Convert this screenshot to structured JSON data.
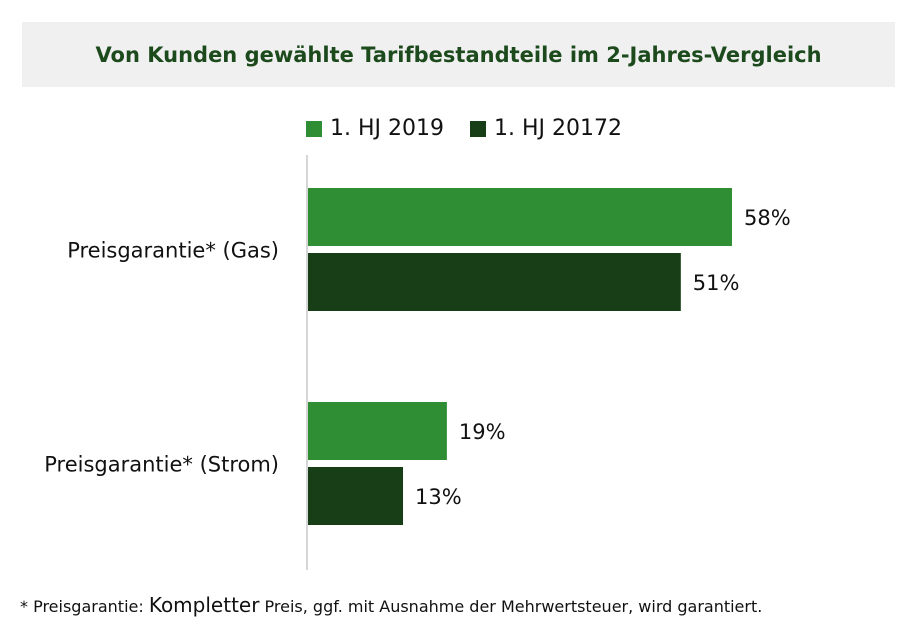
{
  "chart_data": {
    "type": "bar",
    "orientation": "horizontal",
    "title": "Von Kunden gewählte Tarifbestandteile im 2-Jahres-Vergleich",
    "categories": [
      "Preisgarantie* (Gas)",
      "Preisgarantie* (Strom)"
    ],
    "series": [
      {
        "name": "1. HJ 2019",
        "values": [
          58,
          19
        ],
        "color": "#2f8e33"
      },
      {
        "name": "1. HJ 20172",
        "values": [
          51,
          13
        ],
        "color": "#173e17"
      }
    ],
    "value_suffix": "%",
    "xlim": [
      0,
      83
    ],
    "grid": false,
    "legend_position": "top"
  },
  "footnote": {
    "prefix": "* Preisgarantie: ",
    "emphasis": "Kompletter",
    "rest": " Preis, ggf. mit Ausnahme der Mehrwertsteuer, wird garantiert."
  }
}
